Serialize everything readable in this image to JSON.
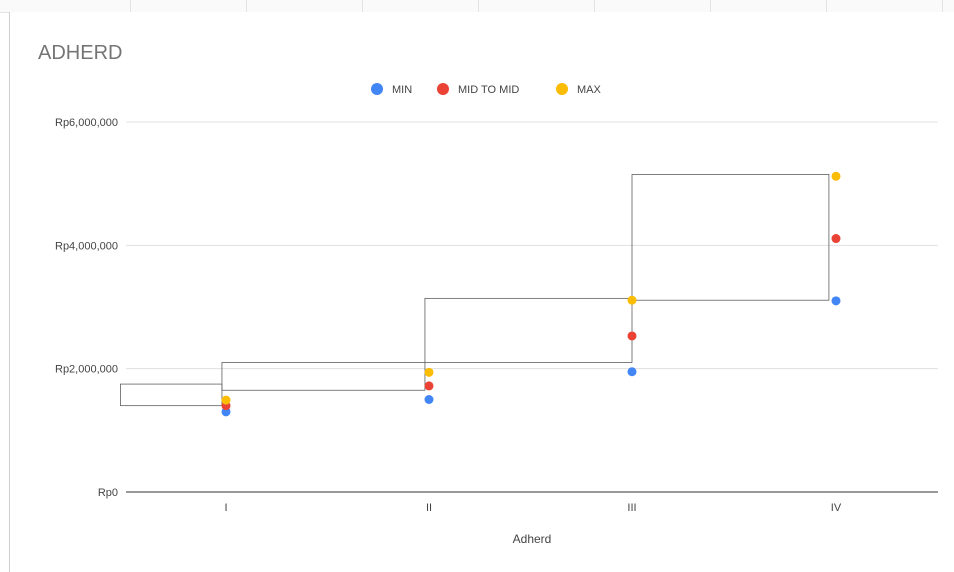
{
  "chart_data": {
    "type": "scatter",
    "title": "ADHERD",
    "xlabel": "Adherd",
    "ylabel": "",
    "categories": [
      "I",
      "II",
      "III",
      "IV"
    ],
    "ylim": [
      0,
      6000000
    ],
    "y_ticks": [
      {
        "value": 0,
        "label": "Rp0"
      },
      {
        "value": 2000000,
        "label": "Rp2,000,000"
      },
      {
        "value": 4000000,
        "label": "Rp4,000,000"
      },
      {
        "value": 6000000,
        "label": "Rp6,000,000"
      }
    ],
    "legend_position": "top",
    "grid": true,
    "series": [
      {
        "name": "MIN",
        "color": "#4285f4",
        "values": [
          1300000,
          1500000,
          1950000,
          3100000
        ]
      },
      {
        "name": "MID TO MID",
        "color": "#ea4335",
        "values": [
          1400000,
          1720000,
          2530000,
          4110000
        ]
      },
      {
        "name": "MAX",
        "color": "#fbbc04",
        "values": [
          1490000,
          1940000,
          3110000,
          5120000
        ]
      }
    ],
    "boxes": [
      {
        "label": "",
        "x0": -0.52,
        "x1": -0.02,
        "y0": 1400000,
        "y1": 1750000
      },
      {
        "label": "",
        "x0": -0.02,
        "x1": 0.98,
        "y0": 1650000,
        "y1": 2100000
      },
      {
        "label": "",
        "x0": 0.98,
        "x1": 2.0,
        "y0": 2100000,
        "y1": 3140000
      },
      {
        "label": "",
        "x0": 2.0,
        "x1": 2.97,
        "y0": 3110000,
        "y1": 5150000
      }
    ]
  }
}
